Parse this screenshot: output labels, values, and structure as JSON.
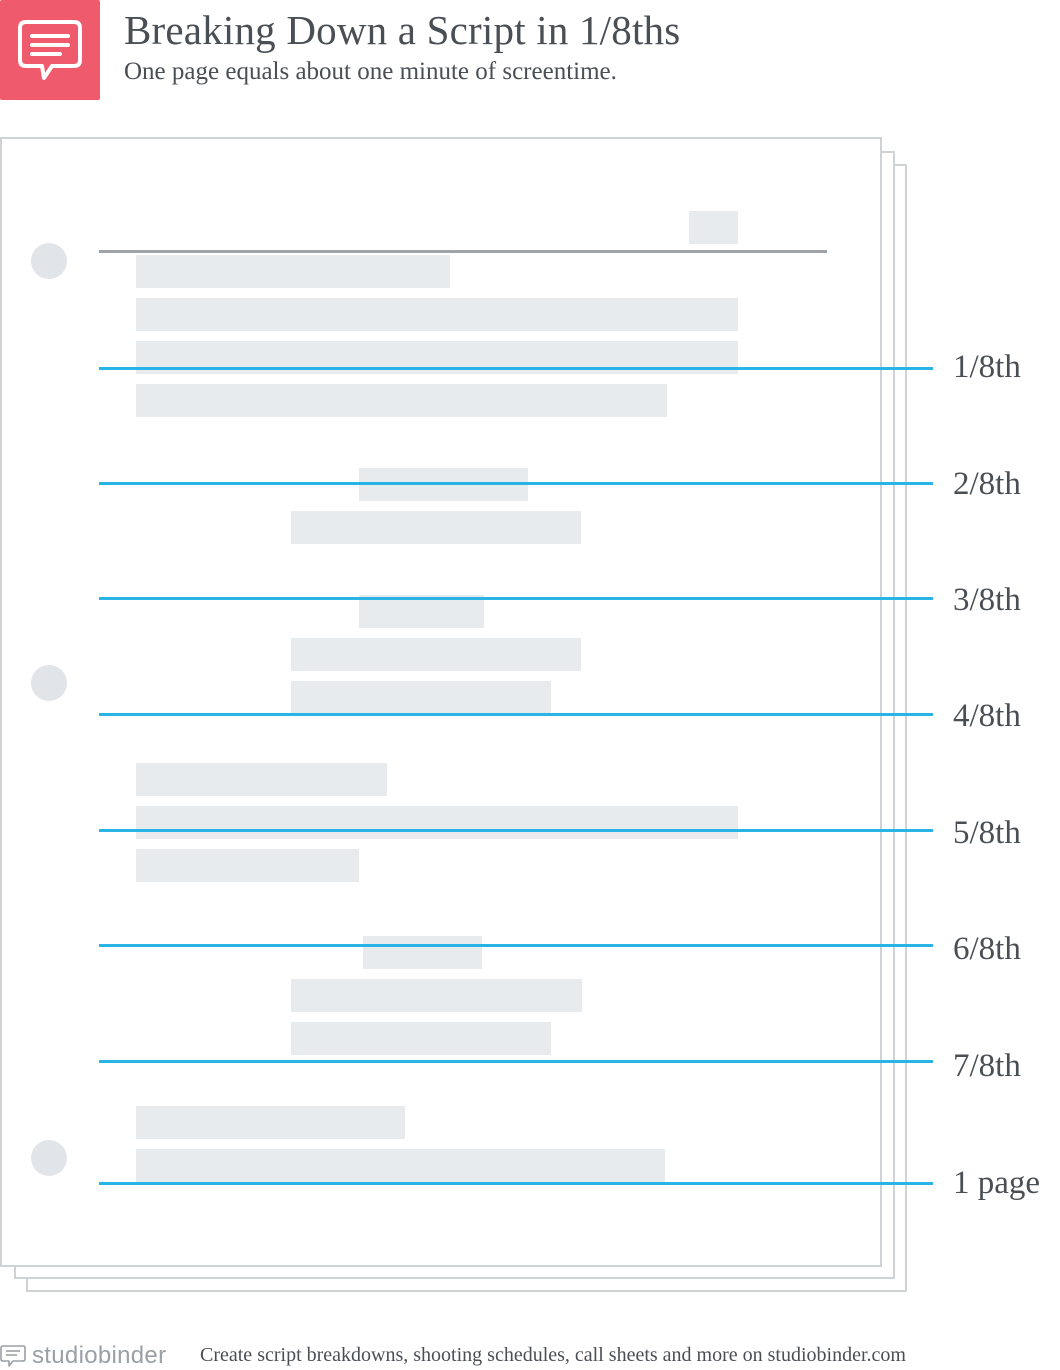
{
  "header": {
    "title": "Breaking Down a Script in 1/8ths",
    "subtitle": "One page equals about one minute of screentime."
  },
  "logo": {
    "icon": "chat-bubble-icon",
    "color": "#ef5a6c"
  },
  "markers": [
    {
      "label": "1/8th"
    },
    {
      "label": "2/8th"
    },
    {
      "label": "3/8th"
    },
    {
      "label": "4/8th"
    },
    {
      "label": "5/8th"
    },
    {
      "label": "6/8th"
    },
    {
      "label": "7/8th"
    },
    {
      "label": "1 page"
    }
  ],
  "colors": {
    "accent": "#ef5a6c",
    "marker_line": "#29b4e6",
    "text_placeholder": "#e8ebee",
    "page_border": "#d0d3d6"
  },
  "footer": {
    "brand": "studiobinder",
    "text": "Create script breakdowns, shooting schedules, call sheets and more on studiobinder.com"
  }
}
